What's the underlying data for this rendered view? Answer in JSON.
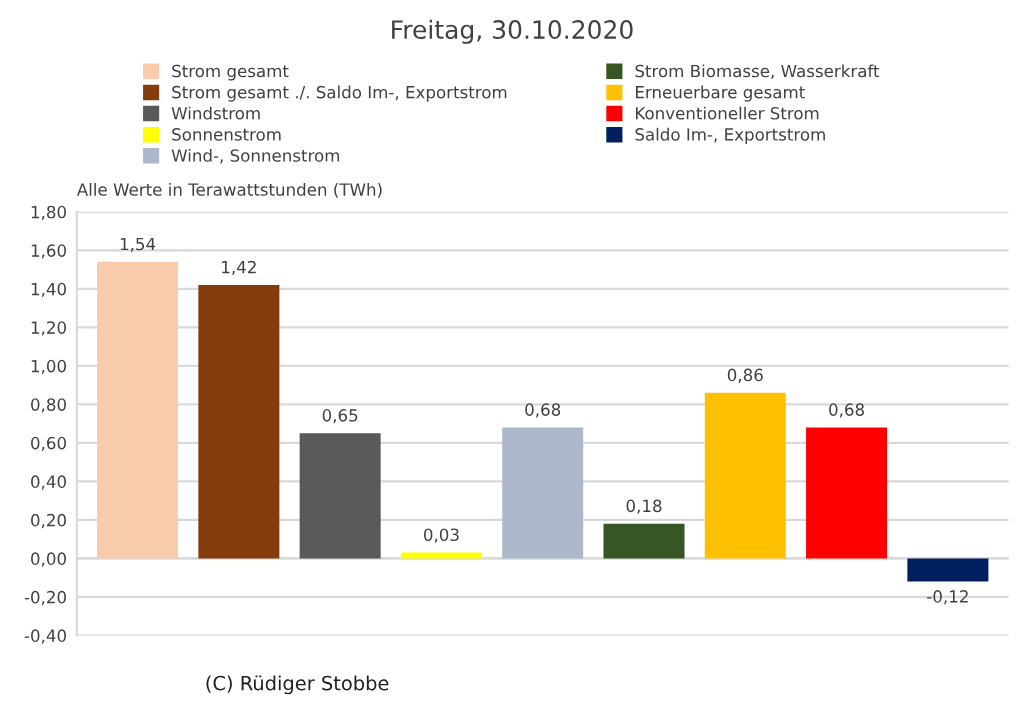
{
  "chart_data": {
    "type": "bar",
    "title": "Freitag, 30.10.2020",
    "ylabel": "Alle Werte in Terawattstunden (TWh)",
    "categories": [
      null,
      null,
      null,
      null,
      null,
      null,
      null,
      null,
      null
    ],
    "series": [
      {
        "name": "Strom gesamt",
        "color": "#f8cbad",
        "values": [
          1.54,
          null,
          null,
          null,
          null,
          null,
          null,
          null,
          null
        ],
        "value_labels": [
          "1,54",
          null,
          null,
          null,
          null,
          null,
          null,
          null,
          null
        ]
      },
      {
        "name": "Strom gesamt ./. Saldo Im-, Exportstrom",
        "color": "#843c0c",
        "values": [
          null,
          1.42,
          null,
          null,
          null,
          null,
          null,
          null,
          null
        ],
        "value_labels": [
          null,
          "1,42",
          null,
          null,
          null,
          null,
          null,
          null,
          null
        ]
      },
      {
        "name": "Windstrom",
        "color": "#595959",
        "values": [
          null,
          null,
          0.65,
          null,
          null,
          null,
          null,
          null,
          null
        ],
        "value_labels": [
          null,
          null,
          "0,65",
          null,
          null,
          null,
          null,
          null,
          null
        ]
      },
      {
        "name": "Sonnenstrom",
        "color": "#ffff00",
        "values": [
          null,
          null,
          null,
          0.03,
          null,
          null,
          null,
          null,
          null
        ],
        "value_labels": [
          null,
          null,
          null,
          "0,03",
          null,
          null,
          null,
          null,
          null
        ]
      },
      {
        "name": "Wind-, Sonnenstrom",
        "color": "#adb9ca",
        "values": [
          null,
          null,
          null,
          null,
          0.68,
          null,
          null,
          null,
          null
        ],
        "value_labels": [
          null,
          null,
          null,
          null,
          "0,68",
          null,
          null,
          null,
          null
        ]
      },
      {
        "name": "Strom Biomasse, Wasserkraft",
        "color": "#375623",
        "values": [
          null,
          null,
          null,
          null,
          null,
          0.18,
          null,
          null,
          null
        ],
        "value_labels": [
          null,
          null,
          null,
          null,
          null,
          "0,18",
          null,
          null,
          null
        ]
      },
      {
        "name": "Erneuerbare gesamt",
        "color": "#ffc000",
        "values": [
          null,
          null,
          null,
          null,
          null,
          null,
          0.86,
          null,
          null
        ],
        "value_labels": [
          null,
          null,
          null,
          null,
          null,
          null,
          "0,86",
          null,
          null
        ]
      },
      {
        "name": "Konventioneller Strom",
        "color": "#ff0000",
        "values": [
          null,
          null,
          null,
          null,
          null,
          null,
          null,
          0.68,
          null
        ],
        "value_labels": [
          null,
          null,
          null,
          null,
          null,
          null,
          null,
          "0,68",
          null
        ]
      },
      {
        "name": "Saldo Im-, Exportstrom",
        "color": "#002060",
        "values": [
          null,
          null,
          null,
          null,
          null,
          null,
          null,
          null,
          -0.12
        ],
        "value_labels": [
          null,
          null,
          null,
          null,
          null,
          null,
          null,
          null,
          "-0,12"
        ]
      }
    ],
    "ylim": [
      -0.4,
      1.8
    ],
    "yticks": [
      {
        "value": -0.4,
        "label": "-0,40"
      },
      {
        "value": -0.2,
        "label": "-0,20"
      },
      {
        "value": 0,
        "label": "0,00"
      },
      {
        "value": 0.2,
        "label": "0,20"
      },
      {
        "value": 0.4,
        "label": "0,40"
      },
      {
        "value": 0.6,
        "label": "0,60"
      },
      {
        "value": 0.8,
        "label": "0,80"
      },
      {
        "value": 1.0,
        "label": "1,00"
      },
      {
        "value": 1.2,
        "label": "1,20"
      },
      {
        "value": 1.4,
        "label": "1,40"
      },
      {
        "value": 1.6,
        "label": "1,60"
      },
      {
        "value": 1.8,
        "label": "1,80"
      }
    ],
    "grid": "y",
    "legend": "top",
    "annotations": [
      "(C) Rüdiger Stobbe"
    ]
  }
}
